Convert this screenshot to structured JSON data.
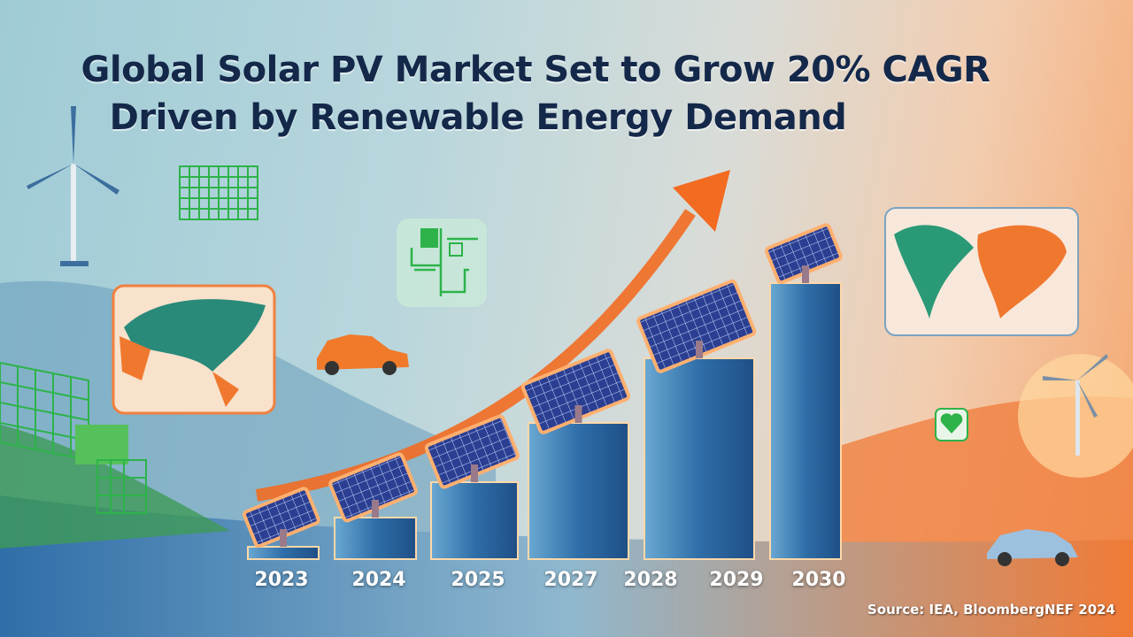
{
  "title": {
    "line1": "Global Solar PV Market Set to Grow 20% CAGR",
    "line2": "Driven by Renewable Energy Demand"
  },
  "years": [
    "2023",
    "2024",
    "2025",
    "2027",
    "2028",
    "2029",
    "2030"
  ],
  "source": "Source: IEA, BloombergNEF 2024",
  "colors": {
    "accent_orange": "#f26b21",
    "bar_blue": "#2f6ea8",
    "title_navy": "#14284a",
    "icon_green": "#2db34a"
  },
  "icons": [
    "wind-turbine-icon",
    "grid-icon",
    "circuit-icon",
    "map-card-asia",
    "map-card-world",
    "car-icon",
    "heart-icon",
    "growth-arrow-icon",
    "solar-panel-icon"
  ]
}
